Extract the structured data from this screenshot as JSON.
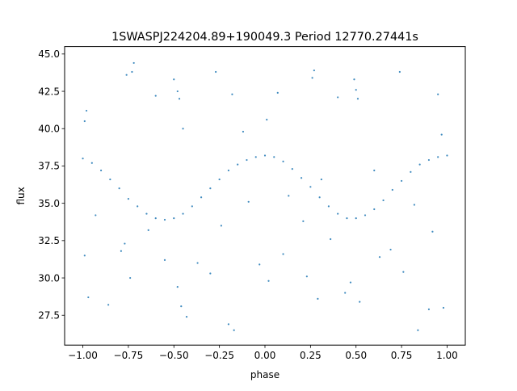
{
  "chart_data": {
    "type": "scatter",
    "title": "1SWASPJ224204.89+190049.3 Period 12770.27441s",
    "xlabel": "phase",
    "ylabel": "flux",
    "xlim": [
      -1.1,
      1.1
    ],
    "ylim": [
      25.5,
      45.5
    ],
    "x_ticks": [
      -1.0,
      -0.75,
      -0.5,
      -0.25,
      0.0,
      0.25,
      0.5,
      0.75,
      1.0
    ],
    "x_tick_labels": [
      "−1.00",
      "−0.75",
      "−0.50",
      "−0.25",
      "0.00",
      "0.25",
      "0.50",
      "0.75",
      "1.00"
    ],
    "y_ticks": [
      27.5,
      30.0,
      32.5,
      35.0,
      37.5,
      40.0,
      42.5,
      45.0
    ],
    "y_tick_labels": [
      "27.5",
      "30.0",
      "32.5",
      "35.0",
      "37.5",
      "40.0",
      "42.5",
      "45.0"
    ],
    "grid": false,
    "legend": "none",
    "marker_color": "#1f77b4",
    "series": [
      {
        "x": [
          -1.0,
          -0.95,
          -0.9,
          -0.85,
          -0.8,
          -0.75,
          -0.7,
          -0.65,
          -0.6,
          -0.55,
          -0.5,
          -0.45,
          -0.4,
          -0.35,
          -0.3,
          -0.25,
          -0.2,
          -0.15,
          -0.1,
          -0.05,
          0.0,
          0.05,
          0.1,
          0.15,
          0.2,
          0.25,
          0.3,
          0.35,
          0.4,
          0.45,
          0.5,
          0.55,
          0.6,
          0.65,
          0.7,
          0.75,
          0.8,
          0.85,
          0.9,
          0.95,
          1.0
        ],
        "y": [
          38.0,
          37.7,
          37.2,
          36.6,
          36.0,
          35.3,
          34.8,
          34.3,
          34.0,
          33.9,
          34.0,
          34.3,
          34.8,
          35.4,
          36.0,
          36.6,
          37.2,
          37.6,
          37.9,
          38.1,
          38.2,
          38.1,
          37.8,
          37.3,
          36.7,
          36.1,
          35.4,
          34.8,
          34.3,
          34.0,
          34.0,
          34.2,
          34.6,
          35.2,
          35.9,
          36.5,
          37.1,
          37.6,
          37.9,
          38.1,
          38.2
        ]
      },
      {
        "x": [
          -0.99,
          -0.98,
          -0.76,
          -0.73,
          -0.72,
          -0.6,
          -0.5,
          -0.48,
          -0.47,
          -0.45,
          -0.27,
          -0.18,
          -0.12,
          0.01,
          0.07,
          0.26,
          0.27,
          0.4,
          0.49,
          0.5,
          0.51,
          0.74,
          0.95,
          0.97,
          -0.99,
          -0.97,
          -0.86,
          -0.79,
          -0.74,
          -0.55,
          -0.48,
          -0.46,
          -0.43,
          -0.3,
          -0.2,
          -0.17,
          -0.03,
          0.02,
          0.1,
          0.23,
          0.29,
          0.44,
          0.47,
          0.52,
          0.63,
          0.76,
          0.84,
          0.9,
          0.98,
          -0.93,
          -0.77,
          -0.64,
          -0.37,
          -0.24,
          -0.09,
          0.13,
          0.21,
          0.31,
          0.36,
          0.6,
          0.69,
          0.82,
          0.92
        ],
        "y": [
          40.5,
          41.2,
          43.6,
          43.8,
          44.4,
          42.2,
          43.3,
          42.5,
          42.0,
          40.0,
          43.8,
          42.3,
          39.8,
          40.6,
          42.4,
          43.4,
          43.9,
          42.1,
          43.3,
          42.6,
          42.0,
          43.8,
          42.3,
          39.6,
          31.5,
          28.7,
          28.2,
          31.8,
          30.0,
          31.2,
          29.4,
          28.1,
          27.4,
          30.3,
          26.9,
          26.5,
          30.9,
          29.8,
          31.6,
          30.1,
          28.6,
          29.0,
          29.7,
          28.4,
          31.4,
          30.4,
          26.5,
          27.9,
          28.0,
          34.2,
          32.3,
          33.2,
          31.0,
          33.5,
          35.1,
          35.5,
          33.8,
          36.6,
          32.6,
          37.2,
          31.9,
          34.9,
          33.1
        ]
      }
    ]
  }
}
